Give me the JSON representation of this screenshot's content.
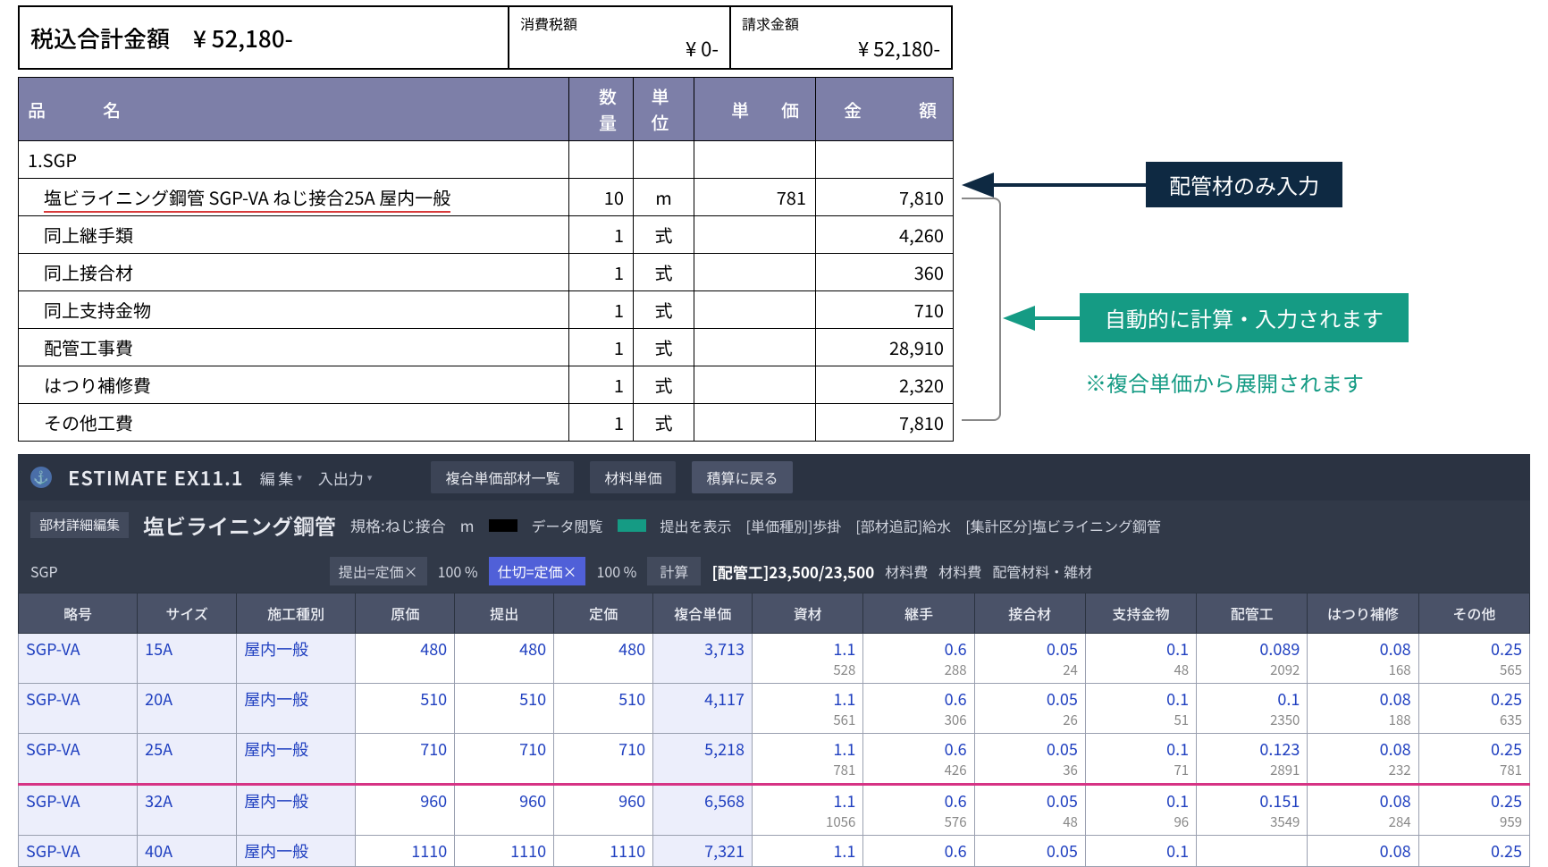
{
  "summary": {
    "total_incl_label": "税込合計金額　¥ 52,180-",
    "tax_label": "消費税額",
    "tax_value": "¥ 0-",
    "bill_label": "請求金額",
    "bill_value": "¥ 52,180-"
  },
  "est_headers": {
    "name": "品　　名",
    "qty": "数 量",
    "unit": "単 位",
    "price": "単　価",
    "amount": "金　　額"
  },
  "est_section": "1.SGP",
  "est_rows": [
    {
      "name": "塩ビライニング鋼管 SGP-VA ねじ接合25A 屋内一般",
      "qty": "10",
      "unit": "m",
      "price": "781",
      "amount": "7,810",
      "underlined": true
    },
    {
      "name": "同上継手類",
      "qty": "1",
      "unit": "式",
      "price": "",
      "amount": "4,260"
    },
    {
      "name": "同上接合材",
      "qty": "1",
      "unit": "式",
      "price": "",
      "amount": "360"
    },
    {
      "name": "同上支持金物",
      "qty": "1",
      "unit": "式",
      "price": "",
      "amount": "710"
    },
    {
      "name": "配管工事費",
      "qty": "1",
      "unit": "式",
      "price": "",
      "amount": "28,910"
    },
    {
      "name": "はつり補修費",
      "qty": "1",
      "unit": "式",
      "price": "",
      "amount": "2,320"
    },
    {
      "name": "その他工費",
      "qty": "1",
      "unit": "式",
      "price": "",
      "amount": "7,810"
    }
  ],
  "callouts": {
    "c1": "配管材のみ入力",
    "c2": "自動的に計算・入力されます",
    "note": "※複合単価から展開されます",
    "colors": {
      "c1": "#0e2942",
      "c2": "#159b84"
    }
  },
  "app": {
    "title": "ESTIMATE EX11.1",
    "menus": {
      "edit": "編 集",
      "io": "入出力"
    },
    "tabs": {
      "list": "複合単価部材一覧",
      "mat": "材料単価",
      "back": "積算に戻る"
    },
    "detail_btn": "部材詳細編集",
    "item_name": "塩ビライニング鋼管",
    "spec": "規格:ねじ接合",
    "unit": "m",
    "view_label": "データ閲覧",
    "show_label": "提出を表示",
    "meta1": "[単価種別]歩掛",
    "meta2": "[部材追記]給水",
    "meta3": "[集計区分]塩ビライニング鋼管",
    "swatch_view": "#000000",
    "swatch_show": "#159b84",
    "group": "SGP",
    "field1": "提出=定価×",
    "pct1": "100 %",
    "field2": "仕切=定価×",
    "pct2": "100 %",
    "calc": "計算",
    "stat": "[配管工]23,500/23,500",
    "sub1": "材料費",
    "sub2": "材料費",
    "sub3": "配管材料・雑材"
  },
  "grid": {
    "headers": [
      "略号",
      "サイズ",
      "施工種別",
      "原価",
      "提出",
      "定価",
      "複合単価",
      "資材",
      "継手",
      "接合材",
      "支持金物",
      "配管工",
      "はつり補修",
      "その他"
    ],
    "rows": [
      {
        "code": "SGP-VA",
        "size": "15A",
        "type": "屋内一般",
        "cost": "480",
        "sub": "480",
        "list": "480",
        "comp": "3,713",
        "c1": [
          "1.1",
          "528"
        ],
        "c2": [
          "0.6",
          "288"
        ],
        "c3": [
          "0.05",
          "24"
        ],
        "c4": [
          "0.1",
          "48"
        ],
        "c5": [
          "0.089",
          "2092"
        ],
        "c6": [
          "0.08",
          "168"
        ],
        "c7": [
          "0.25",
          "565"
        ]
      },
      {
        "code": "SGP-VA",
        "size": "20A",
        "type": "屋内一般",
        "cost": "510",
        "sub": "510",
        "list": "510",
        "comp": "4,117",
        "c1": [
          "1.1",
          "561"
        ],
        "c2": [
          "0.6",
          "306"
        ],
        "c3": [
          "0.05",
          "26"
        ],
        "c4": [
          "0.1",
          "51"
        ],
        "c5": [
          "0.1",
          "2350"
        ],
        "c6": [
          "0.08",
          "188"
        ],
        "c7": [
          "0.25",
          "635"
        ]
      },
      {
        "code": "SGP-VA",
        "size": "25A",
        "type": "屋内一般",
        "cost": "710",
        "sub": "710",
        "list": "710",
        "comp": "5,218",
        "c1": [
          "1.1",
          "781"
        ],
        "c2": [
          "0.6",
          "426"
        ],
        "c3": [
          "0.05",
          "36"
        ],
        "c4": [
          "0.1",
          "71"
        ],
        "c5": [
          "0.123",
          "2891"
        ],
        "c6": [
          "0.08",
          "232"
        ],
        "c7": [
          "0.25",
          "781"
        ],
        "hl": true
      },
      {
        "code": "SGP-VA",
        "size": "32A",
        "type": "屋内一般",
        "cost": "960",
        "sub": "960",
        "list": "960",
        "comp": "6,568",
        "c1": [
          "1.1",
          "1056"
        ],
        "c2": [
          "0.6",
          "576"
        ],
        "c3": [
          "0.05",
          "48"
        ],
        "c4": [
          "0.1",
          "96"
        ],
        "c5": [
          "0.151",
          "3549"
        ],
        "c6": [
          "0.08",
          "284"
        ],
        "c7": [
          "0.25",
          "959"
        ]
      },
      {
        "code": "SGP-VA",
        "size": "40A",
        "type": "屋内一般",
        "cost": "1110",
        "sub": "1110",
        "list": "1110",
        "comp": "7,321",
        "c1": [
          "1.1",
          ""
        ],
        "c2": [
          "0.6",
          ""
        ],
        "c3": [
          "0.05",
          ""
        ],
        "c4": [
          "0.1",
          ""
        ],
        "c5": [
          "",
          ""
        ],
        "c6": [
          "0.08",
          ""
        ],
        "c7": [
          "0.25",
          ""
        ],
        "cut": true
      }
    ]
  }
}
